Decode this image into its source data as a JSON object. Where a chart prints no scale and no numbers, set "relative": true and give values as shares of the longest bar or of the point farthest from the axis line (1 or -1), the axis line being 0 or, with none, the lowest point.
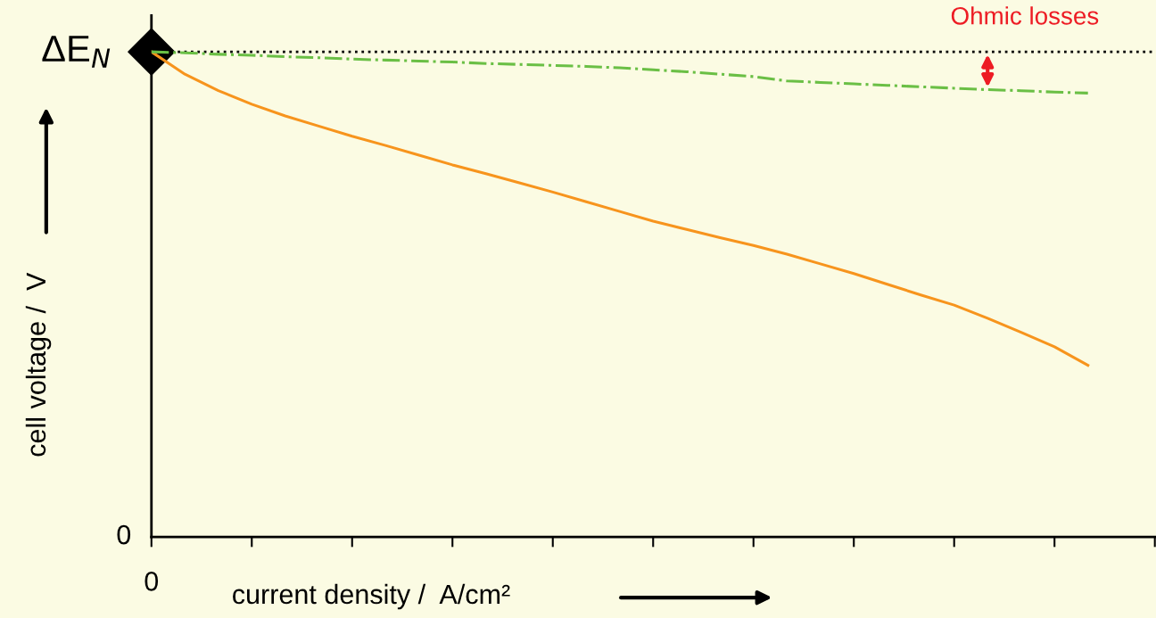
{
  "chart_data": {
    "type": "line",
    "relative": true,
    "xlabel": "current density /  A/cm²",
    "ylabel": "cell voltage /  V",
    "categories": [
      null,
      null,
      null,
      null,
      null,
      null,
      null,
      null,
      null,
      null,
      null,
      null,
      null,
      null,
      null,
      null,
      null,
      null,
      null,
      null,
      null,
      null,
      null,
      null,
      null,
      null,
      null,
      null,
      null,
      null,
      null
    ],
    "series": [
      {
        "color": "#f7941d",
        "line_style": "solid",
        "values": [
          1.0,
          0.954,
          0.92,
          0.892,
          0.868,
          0.847,
          0.826,
          0.807,
          0.787,
          0.767,
          0.749,
          0.73,
          0.711,
          0.691,
          0.671,
          0.651,
          0.634,
          0.617,
          0.601,
          0.583,
          0.563,
          0.543,
          0.521,
          0.499,
          0.478,
          0.451,
          0.422,
          0.392,
          0.354,
          null,
          null
        ]
      },
      {
        "color": "#6abf45",
        "line_style": "dashdot",
        "values": [
          1.0,
          0.998,
          0.995,
          0.993,
          0.99,
          0.988,
          0.985,
          0.983,
          0.981,
          0.979,
          0.976,
          0.974,
          0.972,
          0.97,
          0.967,
          0.963,
          0.959,
          0.954,
          0.949,
          0.94,
          0.937,
          0.934,
          0.931,
          0.928,
          0.925,
          0.922,
          0.92,
          0.917,
          0.915,
          null,
          null
        ]
      }
    ],
    "ref_lines": [
      {
        "axis": "y",
        "value": 1.0,
        "color": "#000000",
        "line_style": "dotted"
      }
    ],
    "annotations": [
      "ΔE$_{N}$",
      "0",
      "0",
      "Ohmic losses"
    ],
    "grid": false
  }
}
